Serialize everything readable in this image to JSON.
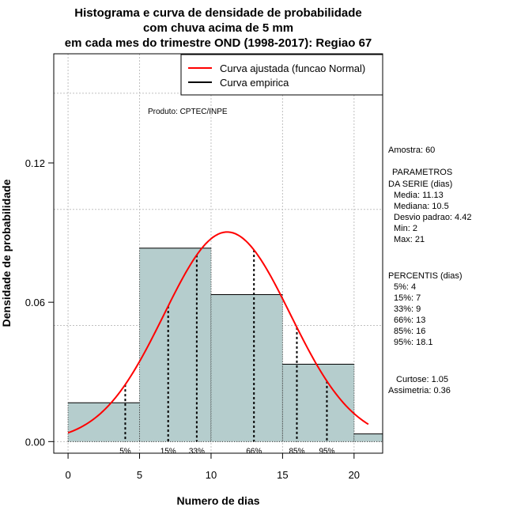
{
  "chart_data": {
    "type": "bar",
    "title_lines": [
      "Histograma e curva de densidade de probabilidade",
      "com chuva acima de 5 mm",
      "em cada mes do trimestre OND (1998-2017): Regiao 67"
    ],
    "xlabel": "Numero de dias",
    "ylabel": "Densidade de probabilidade",
    "xlim": [
      -1,
      22
    ],
    "ylim": [
      -0.005,
      0.167
    ],
    "x_ticks": [
      0,
      5,
      10,
      15,
      20
    ],
    "y_ticks": [
      0.0,
      0.06,
      0.12
    ],
    "y_tick_labels": [
      "0.00",
      "0.06",
      "0.12"
    ],
    "grid_x": [
      0,
      5,
      10,
      15,
      20
    ],
    "grid_y": [
      0.0,
      0.05,
      0.1,
      0.15
    ],
    "bins": [
      {
        "from": 0,
        "to": 5,
        "density": 0.0167
      },
      {
        "from": 5,
        "to": 10,
        "density": 0.0833
      },
      {
        "from": 10,
        "to": 15,
        "density": 0.0633
      },
      {
        "from": 15,
        "to": 20,
        "density": 0.0333
      },
      {
        "from": 20,
        "to": 22,
        "density": 0.0033
      }
    ],
    "normal_fit": {
      "mean": 11.13,
      "sd": 4.42,
      "x_from": 0,
      "x_to": 21
    },
    "percentile_lines": [
      {
        "label": "5%",
        "x": 4
      },
      {
        "label": "15%",
        "x": 7
      },
      {
        "label": "33%",
        "x": 9
      },
      {
        "label": "66%",
        "x": 13
      },
      {
        "label": "85%",
        "x": 16
      },
      {
        "label": "95%",
        "x": 18.1
      }
    ],
    "legend": {
      "position": "top-right",
      "entries": [
        {
          "label": "Curva ajustada (funcao Normal)",
          "color": "#ff0000"
        },
        {
          "label": "Curva empirica",
          "color": "#000000"
        }
      ]
    },
    "product_note": "Produto: CPTEC/INPE",
    "colors": {
      "bar_fill": "#b5cdcd",
      "curve": "#ff0000",
      "grid": "#c0c0c0"
    }
  },
  "side_panel": {
    "sample": "Amostra: 60",
    "params_header_1": "PARAMETROS",
    "params_header_2": "DA SERIE (dias)",
    "media": "Media: 11.13",
    "mediana": "Mediana: 10.5",
    "desvio": "Desvio padrao: 4.42",
    "min": "Min: 2",
    "max": "Max: 21",
    "perc_header": "PERCENTIS (dias)",
    "p5": "5%: 4",
    "p15": "15%: 7",
    "p33": "33%: 9",
    "p66": "66%: 13",
    "p85": "85%: 16",
    "p95": "95%: 18.1",
    "curtose": "Curtose: 1.05",
    "assimetria": "Assimetria: 0.36"
  }
}
